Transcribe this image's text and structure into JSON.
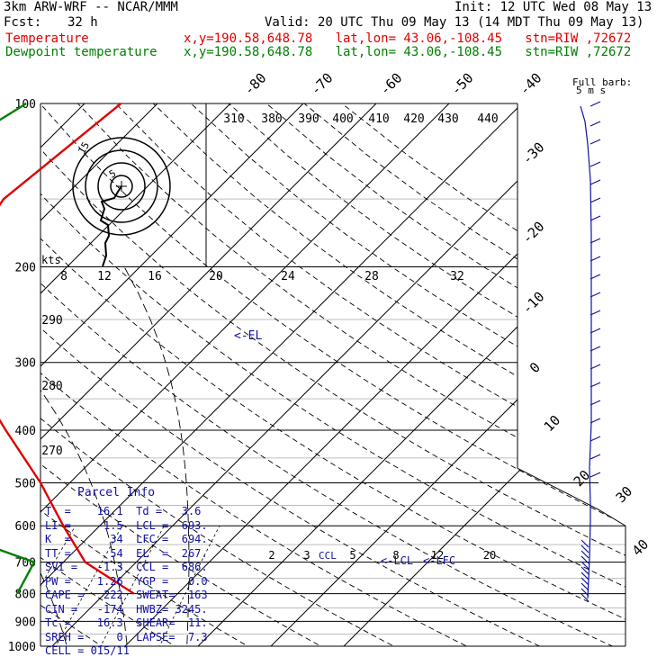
{
  "header": {
    "model": "3km ARW-WRF -- NCAR/MMM",
    "init": "Init: 12 UTC Wed 08 May 13",
    "fcst_label": "Fcst:",
    "fcst_value": "32 h",
    "valid": "Valid: 20 UTC Thu 09 May 13 (14 MDT Thu 09 May 13)",
    "temp_label": "Temperature",
    "dew_label": "Dewpoint temperature",
    "loc_line": "x,y=190.58,648.78   lat,lon= 43.06,-108.45   stn=RIW ,72672"
  },
  "colors": {
    "temperature": "#e00000",
    "dewpoint": "#008000",
    "parcel": "#1010a0",
    "grid": "#000000"
  },
  "chart_data": {
    "type": "line",
    "subtype": "skew-t log-p",
    "pressure_levels": [
      "100",
      "200",
      "300",
      "400",
      "500",
      "600",
      "700",
      "800",
      "900",
      "1000"
    ],
    "isotherm_labels": [
      "-80",
      "-70",
      "-60",
      "-50",
      "-40",
      "-30",
      "-20",
      "-10",
      "0",
      "10",
      "20",
      "30",
      "40"
    ],
    "mixing_ratio_labels": [
      "2",
      "3",
      "5",
      "8",
      "12",
      "20"
    ],
    "theta_labels": [
      "290",
      "280",
      "270"
    ],
    "theta_e_labels": [
      "310",
      "380",
      "390",
      "400",
      "410",
      "420",
      "430",
      "440"
    ],
    "hodo_labels": [
      "kts",
      "8",
      "12",
      "16",
      "20",
      "24",
      "28",
      "32"
    ],
    "hodo_rings": [
      "5",
      "15"
    ],
    "wind_label_1": "Full barb:",
    "wind_label_2": "5 m s",
    "el_marker": "<-EL",
    "lcl_marker": "<-LCL",
    "lfc_marker": "<-LFC",
    "ccl_marker": "CCL",
    "series": [
      {
        "name": "Temperature",
        "points": [
          [
            100,
            -55
          ],
          [
            150,
            -58
          ],
          [
            200,
            -55
          ],
          [
            250,
            -50
          ],
          [
            300,
            -41
          ],
          [
            400,
            -26
          ],
          [
            500,
            -14
          ],
          [
            600,
            -5
          ],
          [
            700,
            3
          ],
          [
            800,
            14
          ]
        ]
      },
      {
        "name": "Dewpoint temperature",
        "points": [
          [
            100,
            -68
          ],
          [
            150,
            -76
          ],
          [
            200,
            -84
          ],
          [
            250,
            -80
          ],
          [
            300,
            -70
          ],
          [
            400,
            -58
          ],
          [
            500,
            -36
          ],
          [
            600,
            -23
          ],
          [
            700,
            -4
          ],
          [
            800,
            -2
          ]
        ]
      }
    ],
    "grid": true
  },
  "parcel_info": {
    "title": "Parcel Info",
    "rows": [
      "T  =    16.1  Td =   3.6",
      "LI =    -1.5  LCL =  693.",
      "K  =      34  LFC =  694.",
      "TT =      54  EL  =  267.",
      "SVI =   -1.3  CCL =  686.",
      "PW =    1.26  YGP =   0.0",
      "CAPE =   222  SWEAT=  163",
      "CIN =   -174  HWBZ= 3245.",
      "Tc =    16.3  SHEAR=  11.",
      "SREH =     0  LAPSE=  7.3",
      "CELL = 015/11"
    ]
  }
}
